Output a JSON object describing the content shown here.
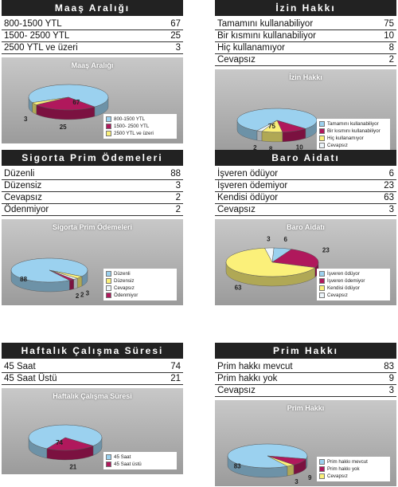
{
  "colors": {
    "blue": "#9bd1ef",
    "magenta": "#b0185c",
    "yellow": "#fbf07a",
    "white": "#eef6fb"
  },
  "panels": [
    {
      "key": "maas",
      "title": "Maaş Aralığı",
      "rows": [
        {
          "label": "800-1500 YTL",
          "value": "67"
        },
        {
          "label": "1500- 2500 YTL",
          "value": "25"
        },
        {
          "label": "2500 YTL ve üzeri",
          "value": "3"
        }
      ],
      "chart_data": {
        "type": "pie",
        "title": "Maaş Aralığı",
        "categories": [
          "800-1500 YTL",
          "1500- 2500 YTL",
          "2500 YTL ve üzeri"
        ],
        "values": [
          67,
          25,
          3
        ],
        "colors": [
          "blue",
          "magenta",
          "yellow"
        ],
        "legend": "bottom-right"
      }
    },
    {
      "key": "izin",
      "title": "İzin Hakkı",
      "rows": [
        {
          "label": "Tamamını kullanabiliyor",
          "value": "75"
        },
        {
          "label": "Bir kısmını kullanabiliyor",
          "value": "10"
        },
        {
          "label": "Hiç kullanamıyor",
          "value": "8"
        },
        {
          "label": "Cevapsız",
          "value": "2"
        }
      ],
      "chart_data": {
        "type": "pie",
        "title": "İzin Hakkı",
        "categories": [
          "Tamamını kullanabiliyor",
          "Bir kısmını kullanabiliyor",
          "Hiç kullanamıyor",
          "Cevapsız"
        ],
        "values": [
          75,
          10,
          8,
          2
        ],
        "colors": [
          "blue",
          "magenta",
          "yellow",
          "white"
        ],
        "legend": "bottom-right"
      }
    },
    {
      "key": "sigorta",
      "title": "Sigorta Prim Ödemeleri",
      "rows": [
        {
          "label": "Düzenli",
          "value": "88"
        },
        {
          "label": "Düzensiz",
          "value": "3"
        },
        {
          "label": "Cevapsız",
          "value": "2"
        },
        {
          "label": "Ödenmiyor",
          "value": "2"
        }
      ],
      "chart_data": {
        "type": "pie",
        "title": "Sigorta Prim Ödemeleri",
        "categories": [
          "Düzenli",
          "Düzensiz",
          "Cevapsız",
          "Ödenmiyor"
        ],
        "values": [
          88,
          3,
          2,
          2
        ],
        "colors": [
          "blue",
          "yellow",
          "white",
          "magenta"
        ],
        "legend": "bottom-right"
      }
    },
    {
      "key": "baro",
      "title": "Baro Aidatı",
      "rows": [
        {
          "label": "İşveren ödüyor",
          "value": "6"
        },
        {
          "label": "İşveren ödemiyor",
          "value": "23"
        },
        {
          "label": "Kendisi ödüyor",
          "value": "63"
        },
        {
          "label": "Cevapsız",
          "value": "3"
        }
      ],
      "chart_data": {
        "type": "pie",
        "title": "Baro Aidatı",
        "categories": [
          "İşveren ödüyor",
          "İşveren ödemiyor",
          "Kendisi ödüyor",
          "Cevapsız"
        ],
        "values": [
          6,
          23,
          63,
          3
        ],
        "colors": [
          "blue",
          "magenta",
          "yellow",
          "white"
        ],
        "legend": "bottom-right"
      }
    },
    {
      "key": "haftalik",
      "title": "Haftalık Çalışma Süresi",
      "rows": [
        {
          "label": "45 Saat",
          "value": "74"
        },
        {
          "label": "45 Saat Üstü",
          "value": "21"
        }
      ],
      "chart_data": {
        "type": "pie",
        "title": "Haftalık Çalışma Süresi",
        "categories": [
          "45 Saat",
          "45 Saat üstü"
        ],
        "values": [
          74,
          21
        ],
        "colors": [
          "blue",
          "magenta"
        ],
        "legend": "bottom-right"
      }
    },
    {
      "key": "prim",
      "title": "Prim Hakkı",
      "rows": [
        {
          "label": "Prim hakkı mevcut",
          "value": "83"
        },
        {
          "label": "Prim hakkı yok",
          "value": "9"
        },
        {
          "label": "Cevapsız",
          "value": "3"
        }
      ],
      "chart_data": {
        "type": "pie",
        "title": "Prim Hakkı",
        "categories": [
          "Prim hakkı mevcut",
          "Prim hakkı yok",
          "Cevapsız"
        ],
        "values": [
          83,
          9,
          3
        ],
        "colors": [
          "blue",
          "magenta",
          "yellow"
        ],
        "legend": "bottom-right"
      }
    }
  ]
}
